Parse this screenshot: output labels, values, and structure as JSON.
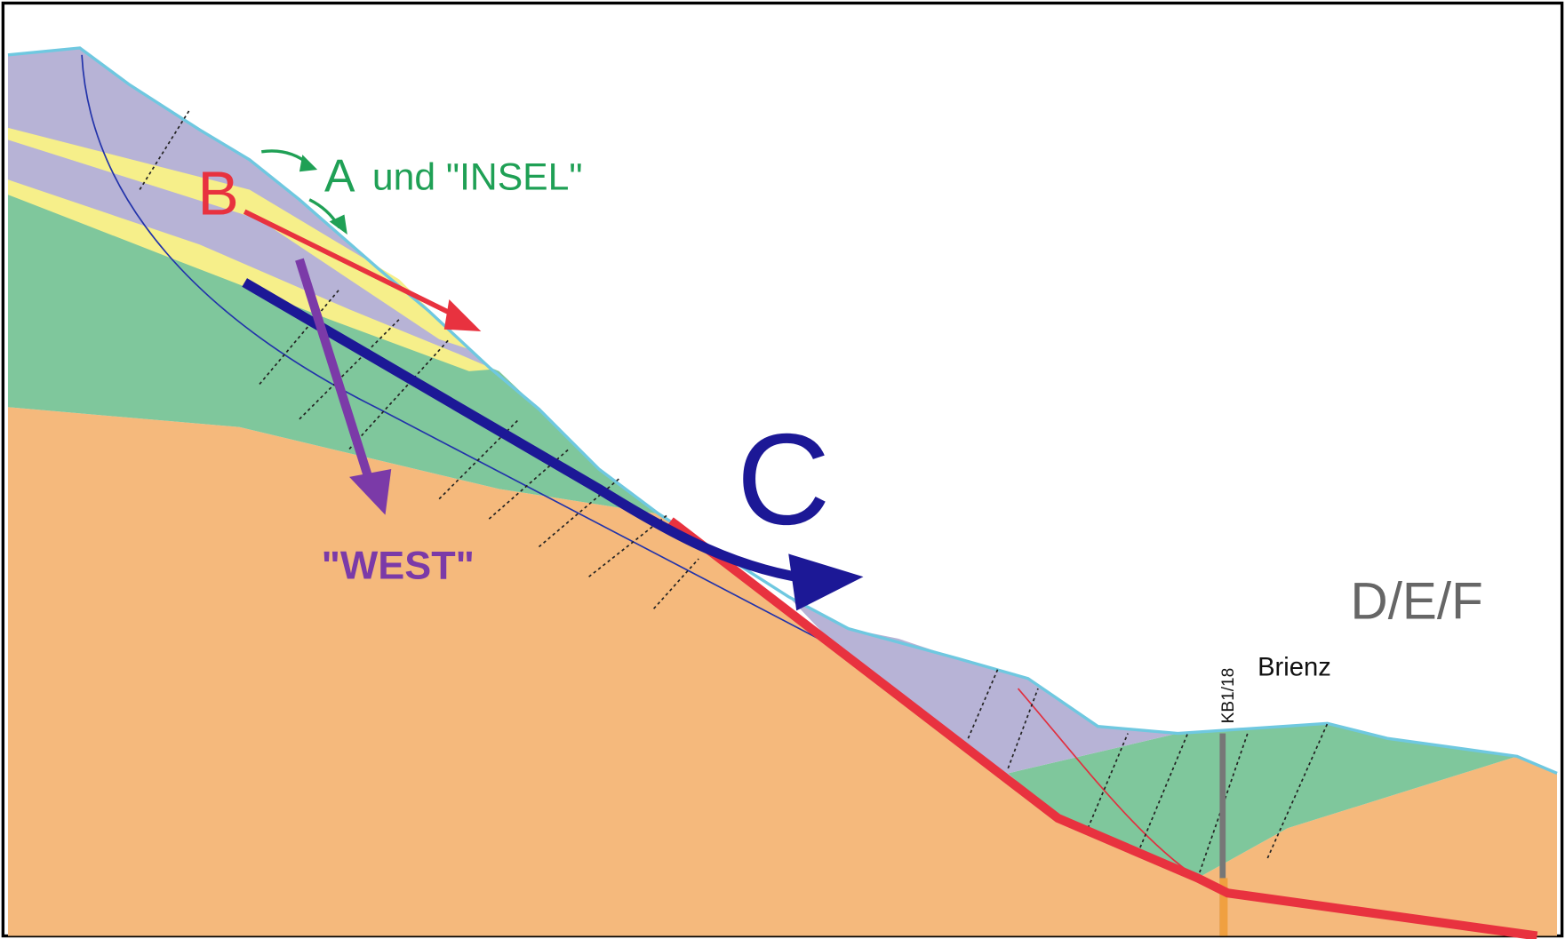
{
  "labels": {
    "a": "A",
    "a_note": "und \"INSEL\"",
    "b": "B",
    "c": "C",
    "west": "\"WEST\"",
    "def": "D/E/F",
    "place": "Brienz",
    "borehole": "KB1/18"
  }
}
